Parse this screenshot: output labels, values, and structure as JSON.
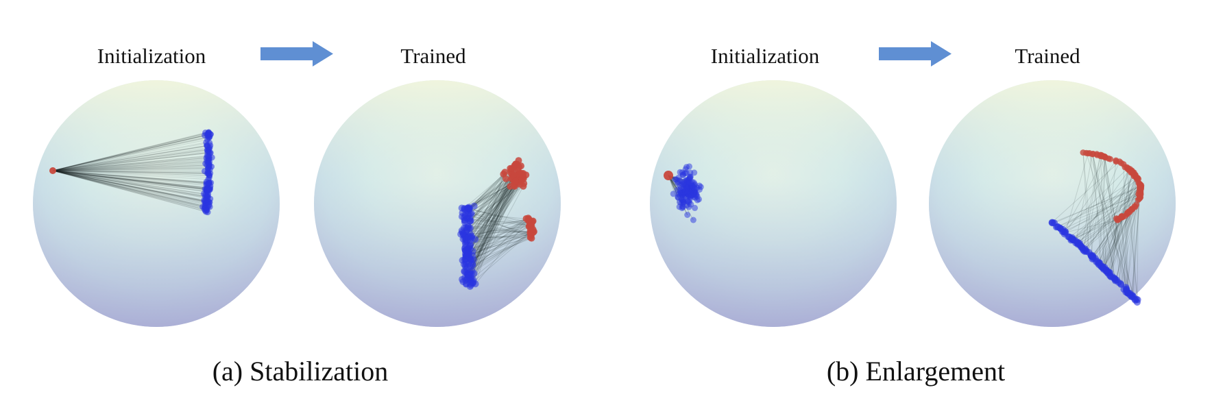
{
  "panels": [
    {
      "caption": "(a) Stabilization",
      "left_title": "Initialization",
      "right_title": "Trained"
    },
    {
      "caption": "(b) Enlargement",
      "left_title": "Initialization",
      "right_title": "Trained"
    }
  ],
  "colors": {
    "blue_points": "#2a35e0",
    "red_points": "#c8483d",
    "lines": "#1f2d2d",
    "arrow": "#5f8fd3",
    "sphere_top": "#f4f7dc",
    "sphere_mid": "#cfe6ea",
    "sphere_bottom": "#a9aed6"
  },
  "icons": [
    "arrow-right-icon",
    "sphere-icon"
  ]
}
